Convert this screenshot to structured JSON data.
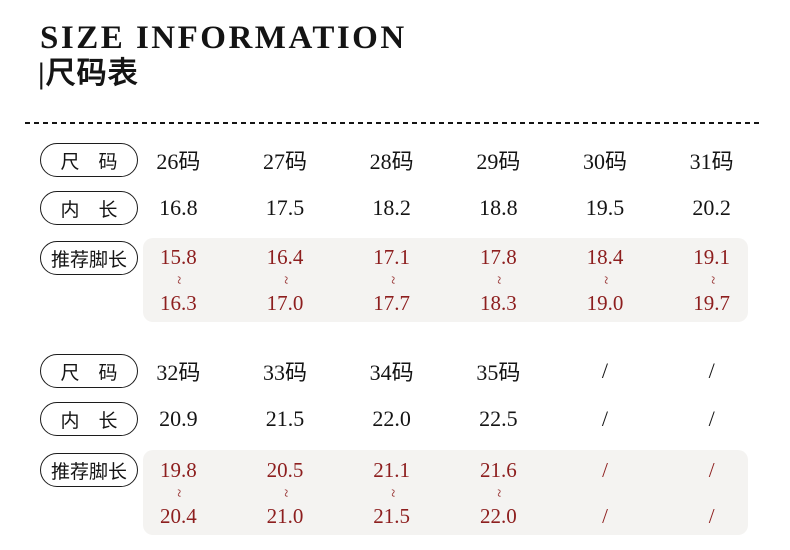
{
  "header": {
    "title": "SIZE INFORMATION",
    "subtitle": "|尺码表"
  },
  "colors": {
    "text": "#141414",
    "accent_red": "#8d1e1e",
    "range_band_bg": "#f4f3f1"
  },
  "tables": [
    {
      "size_row": {
        "label": "尺　码",
        "values": [
          "26码",
          "27码",
          "28码",
          "29码",
          "30码",
          "31码"
        ]
      },
      "inner_row": {
        "label": "内　长",
        "values": [
          "16.8",
          "17.5",
          "18.2",
          "18.8",
          "19.5",
          "20.2"
        ]
      },
      "foot_row": {
        "label": "推荐脚长",
        "cells": [
          {
            "from": "15.8",
            "sep": "~",
            "to": "16.3"
          },
          {
            "from": "16.4",
            "sep": "~",
            "to": "17.0"
          },
          {
            "from": "17.1",
            "sep": "~",
            "to": "17.7"
          },
          {
            "from": "17.8",
            "sep": "~",
            "to": "18.3"
          },
          {
            "from": "18.4",
            "sep": "~",
            "to": "19.0"
          },
          {
            "from": "19.1",
            "sep": "~",
            "to": "19.7"
          }
        ]
      }
    },
    {
      "size_row": {
        "label": "尺　码",
        "values": [
          "32码",
          "33码",
          "34码",
          "35码",
          "/",
          "/"
        ]
      },
      "inner_row": {
        "label": "内　长",
        "values": [
          "20.9",
          "21.5",
          "22.0",
          "22.5",
          "/",
          "/"
        ]
      },
      "foot_row": {
        "label": "推荐脚长",
        "cells": [
          {
            "from": "19.8",
            "sep": "~",
            "to": "20.4"
          },
          {
            "from": "20.5",
            "sep": "~",
            "to": "21.0"
          },
          {
            "from": "21.1",
            "sep": "~",
            "to": "21.5"
          },
          {
            "from": "21.6",
            "sep": "~",
            "to": "22.0"
          },
          {
            "from": "/",
            "sep": "",
            "to": "/"
          },
          {
            "from": "/",
            "sep": "",
            "to": "/"
          }
        ]
      }
    }
  ]
}
